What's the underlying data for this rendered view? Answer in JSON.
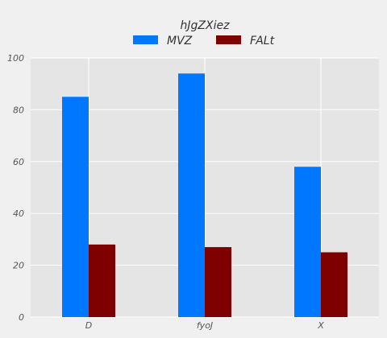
{
  "chart_data": {
    "type": "bar",
    "categories": [
      "D",
      "fyoJ",
      "X"
    ],
    "series": [
      {
        "name": "MVZ",
        "values": [
          85,
          94,
          58
        ],
        "color": "#0077ff"
      },
      {
        "name": "FALt",
        "values": [
          28,
          27,
          25
        ],
        "color": "#7f0000"
      }
    ],
    "legend_title": "hJgZXiez",
    "legend_position": "top-center",
    "ylim": [
      0,
      100
    ],
    "yticks": [
      0,
      20,
      40,
      60,
      80,
      100
    ],
    "grid": true,
    "background": "#e5e5e5",
    "grid_color": "#ffffff"
  }
}
